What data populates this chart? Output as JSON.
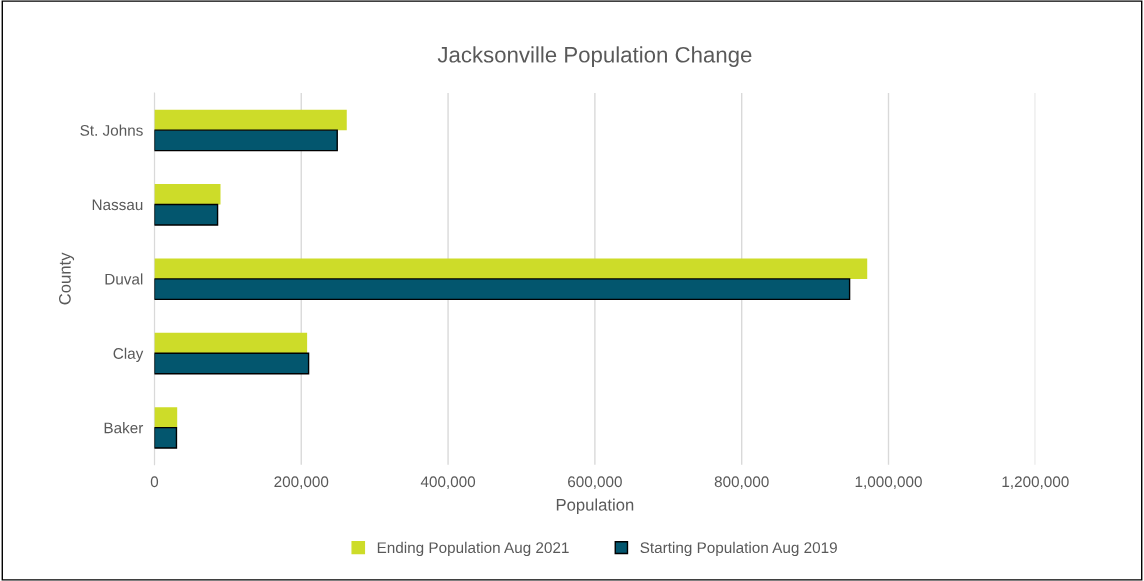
{
  "chart_data": {
    "type": "bar",
    "orientation": "horizontal",
    "title": "Jacksonville Population Change",
    "xlabel": "Population",
    "ylabel": "County",
    "categories": [
      "St. Johns",
      "Nassau",
      "Duval",
      "Clay",
      "Baker"
    ],
    "series": [
      {
        "name": "Ending Population Aug 2021",
        "color": "#cddc29",
        "values": [
          262000,
          90000,
          971000,
          208000,
          31000
        ]
      },
      {
        "name": "Starting Population Aug 2019",
        "color": "#03566e",
        "values": [
          249000,
          86000,
          947000,
          210000,
          30000
        ]
      }
    ],
    "xlim": [
      0,
      1200000
    ],
    "xticks": [
      {
        "value": 0,
        "label": "0"
      },
      {
        "value": 200000,
        "label": "200,000"
      },
      {
        "value": 400000,
        "label": "400,000"
      },
      {
        "value": 600000,
        "label": "600,000"
      },
      {
        "value": 800000,
        "label": "800,000"
      },
      {
        "value": 1000000,
        "label": "1,000,000"
      },
      {
        "value": 1200000,
        "label": "1,200,000"
      }
    ],
    "grid": "x",
    "legend": "bottom"
  }
}
